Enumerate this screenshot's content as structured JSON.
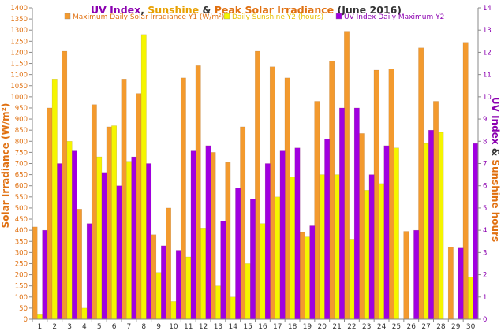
{
  "chart_data": {
    "type": "bar",
    "title_parts": [
      {
        "text": "UV Index",
        "color": "#8B00B0"
      },
      {
        "text": ", ",
        "color": "#333333"
      },
      {
        "text": "Sunshine",
        "color": "#E8A000"
      },
      {
        "text": " & ",
        "color": "#333333"
      },
      {
        "text": "Peak Solar Irradiance",
        "color": "#E07010"
      },
      {
        "text": " (June 2016)",
        "color": "#333333"
      }
    ],
    "ylabel_left": "Solar Irradiance (W/m²)",
    "ylabel_right_parts": [
      {
        "text": "UV Index",
        "color": "#8B00B0"
      },
      {
        "text": " & ",
        "color": "#333333"
      },
      {
        "text": "Sunshine hours",
        "color": "#E07010"
      }
    ],
    "categories": [
      "1",
      "2",
      "3",
      "4",
      "5",
      "6",
      "7",
      "8",
      "9",
      "10",
      "11",
      "12",
      "13",
      "14",
      "15",
      "16",
      "17",
      "18",
      "19",
      "20",
      "21",
      "22",
      "23",
      "24",
      "25",
      "26",
      "27",
      "28",
      "29",
      "30"
    ],
    "y1_lim": [
      0,
      1400
    ],
    "y1_ticks": [
      0,
      50,
      100,
      150,
      200,
      250,
      300,
      350,
      400,
      450,
      500,
      550,
      600,
      650,
      700,
      750,
      800,
      850,
      900,
      950,
      1000,
      1050,
      1100,
      1150,
      1200,
      1250,
      1300,
      1350,
      1400
    ],
    "y2_lim": [
      0,
      14
    ],
    "y2_ticks": [
      0,
      1,
      2,
      3,
      4,
      5,
      6,
      7,
      8,
      9,
      10,
      11,
      12,
      13,
      14
    ],
    "legend_position": "top",
    "grid": false,
    "series": [
      {
        "name": "Maximum Daily Solar Irradiance Y1 (W/m²)",
        "axis": "y1",
        "color": "#F39A2E",
        "values": [
          415,
          950,
          1205,
          495,
          965,
          865,
          1080,
          1015,
          380,
          500,
          1085,
          1140,
          750,
          705,
          865,
          1205,
          1135,
          1085,
          390,
          980,
          1160,
          1295,
          835,
          1120,
          1125,
          395,
          1220,
          980,
          325,
          1245
        ]
      },
      {
        "name": "Daily Sunshine Y2 (hours)",
        "axis": "y2",
        "color": "#F5F500",
        "values": [
          0.2,
          10.8,
          8.0,
          0.5,
          7.3,
          8.7,
          7.1,
          12.8,
          2.1,
          0.8,
          2.8,
          4.1,
          1.5,
          1.0,
          2.5,
          4.3,
          5.5,
          6.4,
          3.7,
          6.5,
          6.5,
          3.6,
          5.8,
          6.1,
          7.7,
          0.0,
          7.9,
          8.4,
          0.0,
          1.9
        ]
      },
      {
        "name": "UV Index Daily Maximum Y2",
        "axis": "y2",
        "color": "#A000E0",
        "values": [
          4.0,
          7.0,
          7.6,
          4.3,
          6.6,
          6.0,
          7.3,
          7.0,
          3.3,
          3.1,
          7.6,
          7.8,
          4.4,
          5.9,
          5.4,
          7.0,
          7.6,
          7.7,
          4.2,
          8.1,
          9.5,
          9.5,
          6.5,
          7.8,
          0.0,
          4.0,
          8.5,
          0.0,
          3.2,
          7.9
        ]
      }
    ]
  }
}
